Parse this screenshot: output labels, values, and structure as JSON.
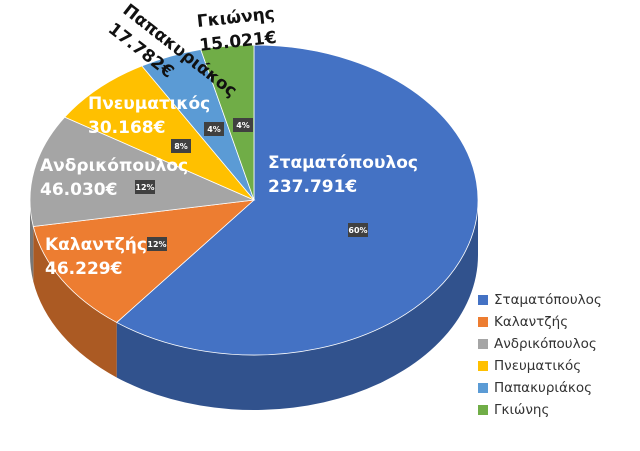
{
  "chart_data": {
    "type": "pie3d",
    "categories": [
      "Σταματόπουλος",
      "Καλαντζής",
      "Ανδρικόπουλος",
      "Πνευματικός",
      "Παπακυριάκος",
      "Γκιώνης"
    ],
    "values": [
      237791,
      46229,
      46030,
      30168,
      17782,
      15021
    ],
    "value_labels": [
      "237.791€",
      "46.229€",
      "46.030€",
      "30.168€",
      "17.782€",
      "15.021€"
    ],
    "percent_labels": [
      "60%",
      "12%",
      "12%",
      "8%",
      "4%",
      "4%"
    ],
    "colors": [
      "#4472c4",
      "#ed7d31",
      "#a5a5a5",
      "#ffc000",
      "#5b9bd5",
      "#70ad47"
    ],
    "legend": "right"
  }
}
